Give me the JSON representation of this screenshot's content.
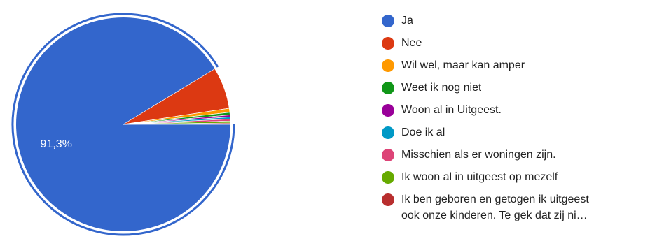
{
  "chart_data": {
    "type": "pie",
    "slices": [
      {
        "label": "Ja",
        "value": 91.3,
        "color": "#3366cc"
      },
      {
        "label": "Nee",
        "value": 6.3,
        "color": "#dc3912"
      },
      {
        "label": "Wil wel, maar kan amper",
        "value": 0.6,
        "color": "#ff9900"
      },
      {
        "label": "Weet ik nog niet",
        "value": 0.4,
        "color": "#109618"
      },
      {
        "label": "Woon al in Uitgeest.",
        "value": 0.3,
        "color": "#990099"
      },
      {
        "label": "Doe ik al",
        "value": 0.3,
        "color": "#0099c6"
      },
      {
        "label": "Misschien als er woningen zijn.",
        "value": 0.3,
        "color": "#dd4477"
      },
      {
        "label": "Ik woon al in uitgeest op mezelf",
        "value": 0.3,
        "color": "#66aa00"
      },
      {
        "label": "Ik ben geboren en getogen ik uitgeest ook onze kinderen. Te gek dat zij ni…",
        "value": 0.2,
        "color": "#b82e2e"
      }
    ],
    "data_labels": [
      {
        "slice": 0,
        "text": "91,3%"
      }
    ],
    "highlighted_slice": 0
  },
  "legend": {
    "items": [
      {
        "label": "Ja",
        "color": "#3366cc"
      },
      {
        "label": "Nee",
        "color": "#dc3912"
      },
      {
        "label": "Wil wel, maar kan amper",
        "color": "#ff9900"
      },
      {
        "label": "Weet ik nog niet",
        "color": "#109618"
      },
      {
        "label": "Woon al in Uitgeest.",
        "color": "#990099"
      },
      {
        "label": "Doe ik al",
        "color": "#0099c6"
      },
      {
        "label": "Misschien als er woningen zijn.",
        "color": "#dd4477"
      },
      {
        "label": "Ik woon al in uitgeest op mezelf",
        "color": "#66aa00"
      },
      {
        "label_line1": "Ik ben geboren en getogen ik uitgeest",
        "label_line2": "ook onze kinderen. Te gek dat zij ni…",
        "color": "#b82e2e"
      }
    ]
  }
}
